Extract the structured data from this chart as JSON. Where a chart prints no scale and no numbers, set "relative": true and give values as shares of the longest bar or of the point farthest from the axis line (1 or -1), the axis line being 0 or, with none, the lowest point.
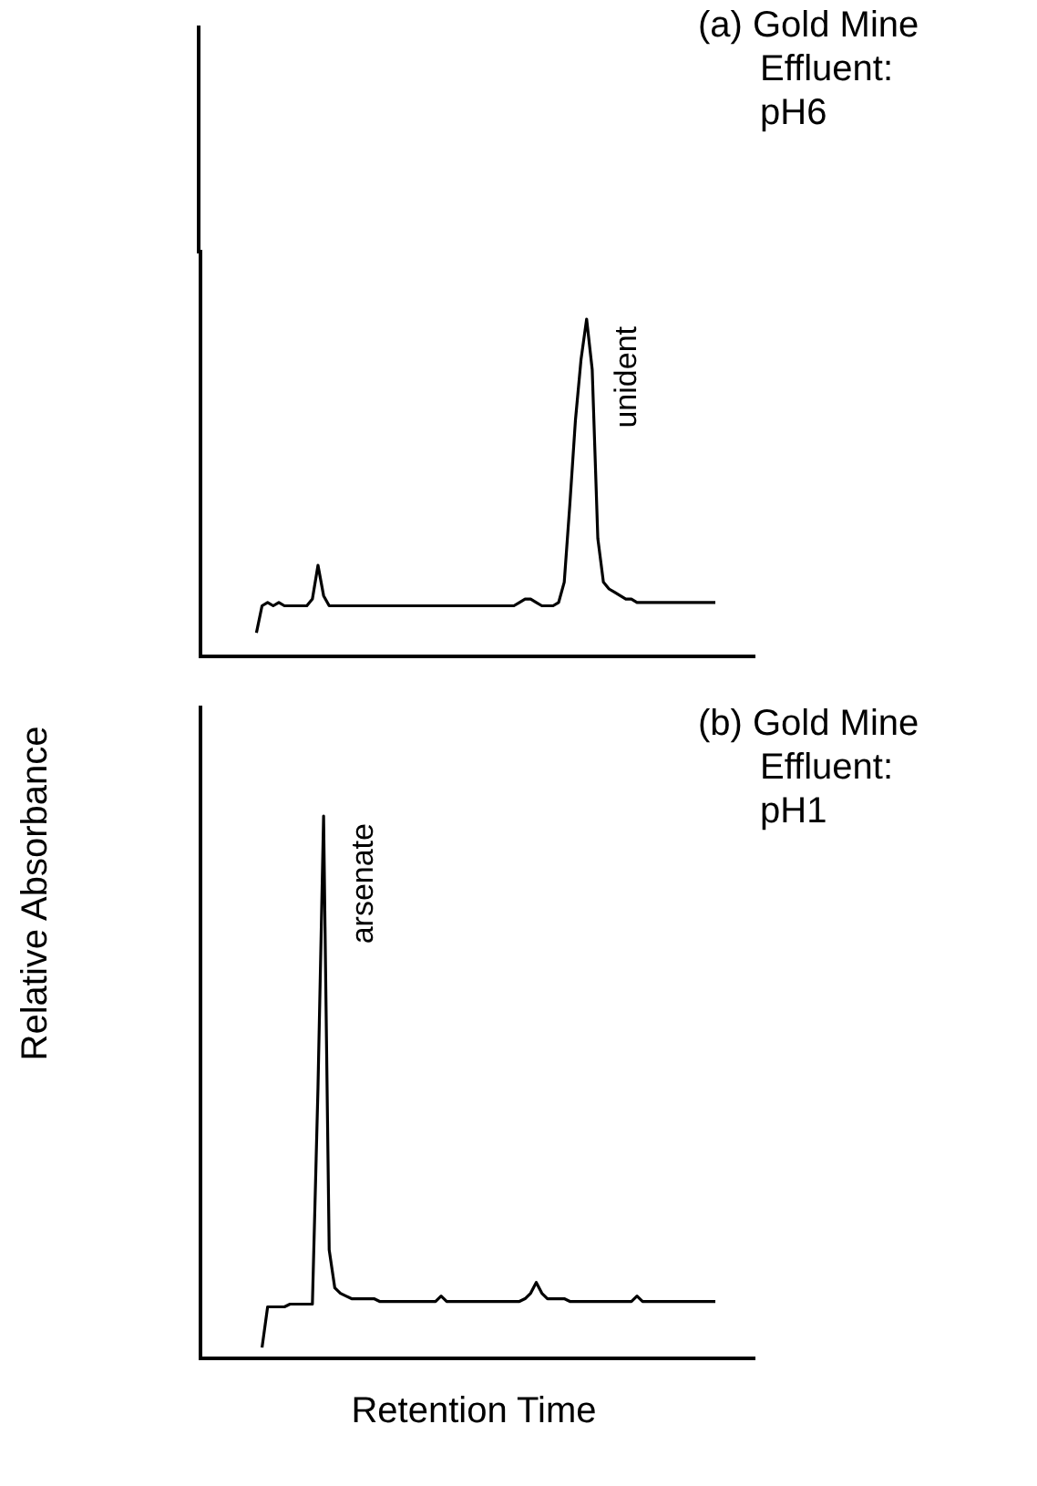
{
  "chart_data": [
    {
      "type": "line",
      "title": "(a) Gold Mine Effluent: pH6",
      "ylabel": "Relative Absorbance",
      "relative": true,
      "legend": false,
      "marker": "none",
      "annotations": [
        "unident"
      ],
      "categories": [
        null,
        null,
        null,
        null,
        null,
        null,
        null,
        null,
        null,
        null,
        null,
        null,
        null,
        null,
        null,
        null,
        null,
        null,
        null,
        null,
        null,
        null,
        null,
        null,
        null,
        null,
        null,
        null,
        null,
        null,
        null,
        null,
        null,
        null,
        null,
        null,
        null,
        null,
        null,
        null,
        null,
        null,
        null,
        null,
        null,
        null,
        null,
        null,
        null,
        null,
        null,
        null,
        null,
        null,
        null,
        null,
        null,
        null,
        null,
        null,
        null,
        null,
        null,
        null,
        null,
        null,
        null,
        null,
        null,
        null,
        null,
        null,
        null,
        null,
        null,
        null,
        null,
        null,
        null,
        null,
        null,
        null,
        null,
        null,
        null,
        null,
        null,
        null,
        null,
        null,
        null,
        null,
        null,
        null,
        null,
        null,
        null,
        null,
        null,
        null
      ],
      "series": [
        {
          "color": "#000000",
          "values": [
            null,
            null,
            null,
            null,
            null,
            null,
            null,
            null,
            null,
            null,
            0.07,
            0.15,
            0.16,
            0.15,
            0.16,
            0.15,
            0.15,
            0.15,
            0.15,
            0.15,
            0.17,
            0.27,
            0.18,
            0.15,
            0.15,
            0.15,
            0.15,
            0.15,
            0.15,
            0.15,
            0.15,
            0.15,
            0.15,
            0.15,
            0.15,
            0.15,
            0.15,
            0.15,
            0.15,
            0.15,
            0.15,
            0.15,
            0.15,
            0.15,
            0.15,
            0.15,
            0.15,
            0.15,
            0.15,
            0.15,
            0.15,
            0.15,
            0.15,
            0.15,
            0.15,
            0.15,
            0.15,
            0.16,
            0.17,
            0.17,
            0.16,
            0.15,
            0.15,
            0.15,
            0.16,
            0.22,
            0.45,
            0.7,
            0.88,
            1,
            0.85,
            0.35,
            0.22,
            0.2,
            0.19,
            0.18,
            0.17,
            0.17,
            0.16,
            0.16,
            0.16,
            0.16,
            0.16,
            0.16,
            0.16,
            0.16,
            0.16,
            0.16,
            0.16,
            0.16,
            0.16,
            0.16,
            0.16,
            null,
            null,
            null,
            null,
            null,
            null,
            null
          ]
        }
      ]
    },
    {
      "type": "line",
      "title": "(b) Gold Mine Effluent: pH1",
      "xlabel": "Retention Time",
      "relative": true,
      "legend": false,
      "marker": "none",
      "annotations": [
        "arsenate"
      ],
      "categories": [
        null,
        null,
        null,
        null,
        null,
        null,
        null,
        null,
        null,
        null,
        null,
        null,
        null,
        null,
        null,
        null,
        null,
        null,
        null,
        null,
        null,
        null,
        null,
        null,
        null,
        null,
        null,
        null,
        null,
        null,
        null,
        null,
        null,
        null,
        null,
        null,
        null,
        null,
        null,
        null,
        null,
        null,
        null,
        null,
        null,
        null,
        null,
        null,
        null,
        null,
        null,
        null,
        null,
        null,
        null,
        null,
        null,
        null,
        null,
        null,
        null,
        null,
        null,
        null,
        null,
        null,
        null,
        null,
        null,
        null,
        null,
        null,
        null,
        null,
        null,
        null,
        null,
        null,
        null,
        null,
        null,
        null,
        null,
        null,
        null,
        null,
        null,
        null,
        null,
        null,
        null,
        null,
        null,
        null,
        null,
        null,
        null,
        null,
        null,
        null
      ],
      "series": [
        {
          "color": "#000000",
          "values": [
            null,
            null,
            null,
            null,
            null,
            null,
            null,
            null,
            null,
            null,
            null,
            0.02,
            0.095,
            0.095,
            0.095,
            0.095,
            0.1,
            0.1,
            0.1,
            0.1,
            0.1,
            0.5,
            1,
            0.2,
            0.13,
            0.12,
            0.115,
            0.11,
            0.11,
            0.11,
            0.11,
            0.11,
            0.105,
            0.105,
            0.105,
            0.105,
            0.105,
            0.105,
            0.105,
            0.105,
            0.105,
            0.105,
            0.105,
            0.115,
            0.105,
            0.105,
            0.105,
            0.105,
            0.105,
            0.105,
            0.105,
            0.105,
            0.105,
            0.105,
            0.105,
            0.105,
            0.105,
            0.105,
            0.11,
            0.12,
            0.14,
            0.12,
            0.11,
            0.11,
            0.11,
            0.11,
            0.105,
            0.105,
            0.105,
            0.105,
            0.105,
            0.105,
            0.105,
            0.105,
            0.105,
            0.105,
            0.105,
            0.105,
            0.115,
            0.105,
            0.105,
            0.105,
            0.105,
            0.105,
            0.105,
            0.105,
            0.105,
            0.105,
            0.105,
            0.105,
            0.105,
            0.105,
            0.105,
            null,
            null,
            null,
            null,
            null,
            null,
            null
          ]
        }
      ]
    }
  ]
}
